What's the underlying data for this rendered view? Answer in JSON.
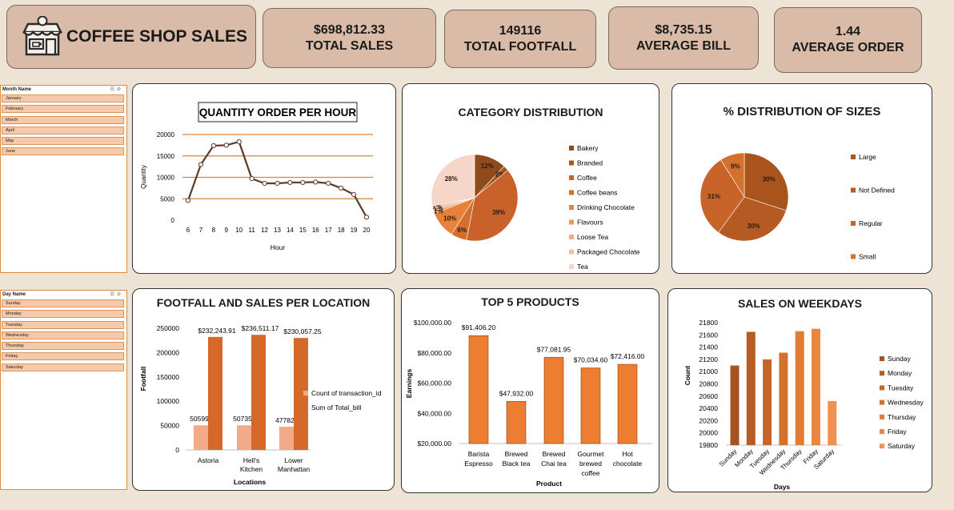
{
  "header": {
    "title": "COFFEE SHOP SALES",
    "kpis": [
      {
        "value": "$698,812.33",
        "label": "TOTAL SALES"
      },
      {
        "value": "149116",
        "label": "TOTAL FOOTFALL"
      },
      {
        "value": "$8,735.15",
        "label": "AVERAGE BILL"
      },
      {
        "value": "1.44",
        "label": "AVERAGE ORDER"
      }
    ]
  },
  "slicers": {
    "month": {
      "title": "Month Name",
      "items": [
        "January",
        "February",
        "March",
        "April",
        "May",
        "June"
      ]
    },
    "day": {
      "title": "Day Name",
      "items": [
        "Sunday",
        "Monday",
        "Tuesday",
        "Wednesday",
        "Thursday",
        "Friday",
        "Saturday"
      ]
    }
  },
  "chart_data": [
    {
      "type": "line",
      "title": "QUANTITY ORDER PER HOUR",
      "xlabel": "Hour",
      "ylabel": "Quantity",
      "x": [
        6,
        7,
        8,
        9,
        10,
        11,
        12,
        13,
        14,
        15,
        16,
        17,
        18,
        19,
        20
      ],
      "values": [
        4600,
        13000,
        17400,
        17500,
        18300,
        9700,
        8600,
        8600,
        8800,
        8800,
        8900,
        8600,
        7500,
        6000,
        700
      ],
      "ylim": [
        0,
        20000
      ],
      "yticks": [
        0,
        5000,
        10000,
        15000,
        20000
      ],
      "grid": true,
      "colors": {
        "line": "#5b3a29",
        "grid": "#d9833a"
      }
    },
    {
      "type": "pie",
      "title": "CATEGORY DISTRIBUTION",
      "categories": [
        "Bakery",
        "Branded",
        "Coffee",
        "Coffee beans",
        "Drinking Chocolate",
        "Flavours",
        "Loose Tea",
        "Packaged Chocolate",
        "Tea"
      ],
      "values": [
        12,
        2,
        39,
        6,
        10,
        1,
        1,
        1,
        28
      ],
      "labels": [
        "12%",
        "2%",
        "39%",
        "6%",
        "10%",
        "1%",
        "1%",
        "1%",
        "28%"
      ],
      "colors": [
        "#8f4a1c",
        "#a9541d",
        "#c8612a",
        "#d4702e",
        "#e8813a",
        "#ef9560",
        "#f2aa88",
        "#f4bfa7",
        "#f6d6c9"
      ],
      "legend": "right"
    },
    {
      "type": "pie",
      "title": "% DISTRIBUTION OF SIZES",
      "categories": [
        "Large",
        "Not Defined",
        "Regular",
        "Small"
      ],
      "values": [
        30,
        30,
        31,
        9
      ],
      "labels": [
        "30%",
        "30%",
        "31%",
        "9%"
      ],
      "colors": [
        "#a9541d",
        "#b55a22",
        "#c8632a",
        "#d4702e"
      ],
      "legend": "right"
    },
    {
      "type": "bar",
      "title": "FOOTFALL AND SALES PER LOCATION",
      "xlabel": "Locations",
      "ylabel": "Footfall",
      "categories": [
        "Astoria",
        "Hell's Kitchen",
        "Lower Manhattan"
      ],
      "series": [
        {
          "name": "Count of transaction_id",
          "values": [
            50599,
            50735,
            47782
          ],
          "labels": [
            "50599",
            "50735",
            "47782"
          ],
          "color": "#f2aa88"
        },
        {
          "name": "Sum of Total_bill",
          "values": [
            232243.91,
            236511.17,
            230057.25
          ],
          "labels": [
            "$232,243.91",
            "$236,511.17",
            "$230,057.25"
          ],
          "color": "#d4692a"
        }
      ],
      "ylim": [
        0,
        250000
      ],
      "yticks": [
        "0",
        "50000",
        "100000",
        "150000",
        "200000",
        "250000"
      ],
      "legend": "right"
    },
    {
      "type": "bar",
      "title": "TOP 5 PRODUCTS",
      "xlabel": "Product",
      "ylabel": "Earnings",
      "categories": [
        "Barista Espresso",
        "Brewed Black tea",
        "Brewed Chai tea",
        "Gourmet brewed coffee",
        "Hot chocolate"
      ],
      "values": [
        91406.2,
        47932.0,
        77081.95,
        70034.6,
        72416.0
      ],
      "labels": [
        "$91,406.20",
        "$47,932.00",
        "$77,081.95",
        "$70,034.60",
        "$72,416.00"
      ],
      "ylim": [
        20000,
        100000
      ],
      "yticks": [
        "$20,000.00",
        "$40,000.00",
        "$60,000.00",
        "$80,000.00",
        "$100,000.00"
      ],
      "colors": {
        "bar": "#ed7d31"
      }
    },
    {
      "type": "bar",
      "title": "SALES ON WEEKDAYS",
      "xlabel": "Days",
      "ylabel": "Count",
      "categories": [
        "Sunday",
        "Monday",
        "Tuesday",
        "Wednesday",
        "Thursday",
        "Friday",
        "Saturday"
      ],
      "values": [
        21100,
        21650,
        21200,
        21310,
        21660,
        21700,
        20520
      ],
      "ylim": [
        19800,
        21800
      ],
      "yticks": [
        19800,
        20000,
        20200,
        20400,
        20600,
        20800,
        21000,
        21200,
        21400,
        21600,
        21800
      ],
      "colors": [
        "#a5531f",
        "#b65c24",
        "#c56629",
        "#d3712f",
        "#e07c36",
        "#ea8640",
        "#ee9152"
      ],
      "legend": "right"
    }
  ]
}
